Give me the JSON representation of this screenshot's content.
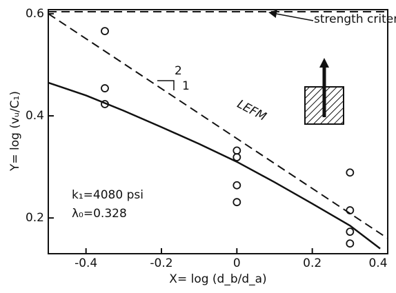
{
  "chart_data": {
    "type": "scatter",
    "xlabel": "X= log (d_b/d_a)",
    "ylabel": "Y= log (vᵤ/C₁)",
    "xlim": [
      -0.5,
      0.4
    ],
    "ylim": [
      0.13,
      0.608
    ],
    "xticks": [
      -0.4,
      -0.2,
      0,
      0.2,
      0.4
    ],
    "yticks": [
      0.2,
      0.4,
      0.6
    ],
    "points": {
      "color": "#111111",
      "x": [
        -0.35,
        -0.35,
        -0.35,
        0,
        0,
        0,
        0,
        0.3,
        0.3,
        0.3,
        0.3
      ],
      "values": [
        0.566,
        0.454,
        0.423,
        0.332,
        0.319,
        0.264,
        0.231,
        0.289,
        0.215,
        0.173,
        0.15
      ]
    },
    "series": [
      {
        "name": "strength criterion",
        "color": "#111111",
        "style": "dashed",
        "x": [
          -0.5,
          0.4
        ],
        "values": [
          0.604,
          0.604
        ]
      },
      {
        "name": "LEFM",
        "color": "#111111",
        "style": "dashed",
        "x": [
          -0.5,
          0.4
        ],
        "values": [
          0.6,
          0.16
        ]
      },
      {
        "color": "#111111",
        "style": "solid",
        "x": [
          -0.5,
          -0.4,
          -0.3,
          -0.2,
          -0.1,
          0,
          0.1,
          0.2,
          0.3,
          0.38
        ],
        "values": [
          0.465,
          0.44,
          0.41,
          0.378,
          0.345,
          0.31,
          0.27,
          0.228,
          0.185,
          0.14
        ]
      }
    ],
    "annotations": [
      "2",
      "1",
      "k₁=4080 psi",
      "λ₀=0.328"
    ]
  }
}
